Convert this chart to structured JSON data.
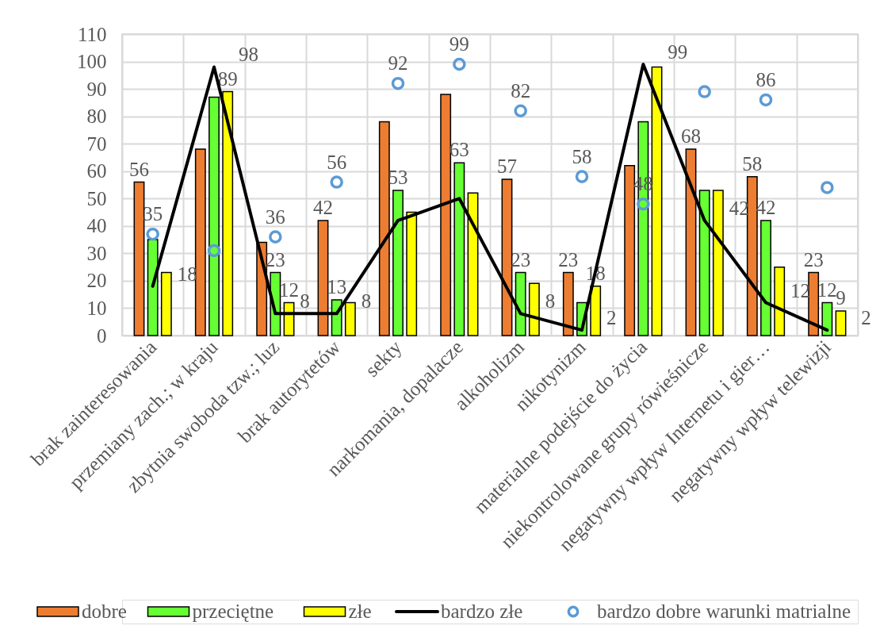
{
  "chart_data": {
    "type": "bar",
    "categories": [
      "brak zainteresowania",
      "przemiany zach.; w kraju",
      "zbytnia swoboda tzw.; luz",
      "brak autorytetów",
      "sekty",
      "narkomania, dopalacze",
      "alkoholizm",
      "nikotynizm",
      "materialne podejście do życia",
      "niekontrolowane grupy rówieśnicze",
      "negatywny wpływ Internetu i gier…",
      "negatywny wpływ telewizji"
    ],
    "ylim": [
      0,
      110
    ],
    "yticks": [
      0,
      10,
      20,
      30,
      40,
      50,
      60,
      70,
      80,
      90,
      100,
      110
    ],
    "grid": true,
    "legend": "bottom",
    "series": [
      {
        "name": "dobre",
        "color": "#ed7d31",
        "values": [
          56,
          68,
          34,
          42,
          78,
          88,
          57,
          23,
          62,
          68,
          58,
          23
        ],
        "value_labels": [
          "56",
          null,
          null,
          "42",
          null,
          null,
          "57",
          "23",
          null,
          "68",
          "58",
          "23"
        ]
      },
      {
        "name": "przeciętne",
        "color": "#66ff33",
        "values": [
          35,
          87,
          23,
          13,
          53,
          63,
          23,
          12,
          78,
          53,
          42,
          12
        ],
        "value_labels": [
          "35",
          null,
          "23",
          "13",
          "53",
          "63",
          "23",
          null,
          null,
          null,
          "42",
          "12"
        ]
      },
      {
        "name": "złe",
        "color": "#ffff00",
        "values": [
          23,
          89,
          12,
          12,
          45,
          52,
          19,
          18,
          98,
          53,
          25,
          9
        ],
        "value_labels": [
          null,
          "89",
          "12",
          null,
          null,
          null,
          null,
          "18",
          null,
          null,
          null,
          "9"
        ]
      },
      {
        "name": "bardzo złe",
        "type": "line",
        "color": "#000000",
        "values": [
          18,
          98,
          8,
          8,
          42,
          50,
          8,
          2,
          99,
          42,
          12,
          2
        ],
        "value_labels": [
          "18",
          "98",
          "8",
          "8",
          null,
          null,
          "8",
          "2",
          "99",
          "42",
          "12",
          "2"
        ]
      },
      {
        "name": "bardzo dobre warunki matrialne",
        "type": "scatter",
        "marker": "circle",
        "color": "#5b9bd5",
        "values": [
          37,
          31,
          36,
          56,
          92,
          99,
          82,
          58,
          48,
          89,
          86,
          54
        ],
        "value_labels": [
          null,
          null,
          "36",
          "56",
          "92",
          "99",
          "82",
          "58",
          "48",
          null,
          "86",
          null
        ]
      }
    ]
  }
}
